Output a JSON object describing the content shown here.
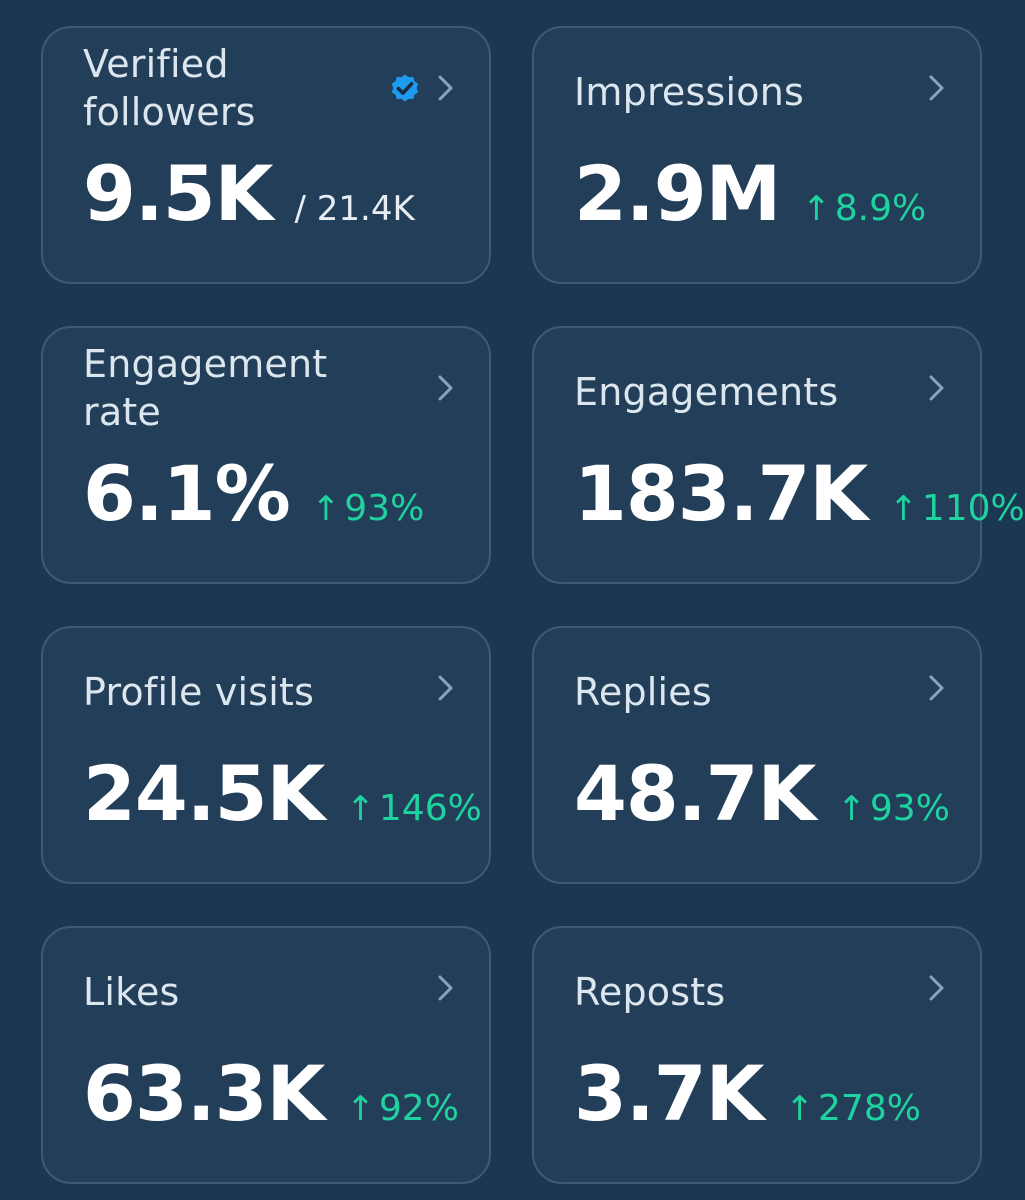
{
  "colors": {
    "background": "#1b3752",
    "card": "#233e58",
    "border": "#3e5a74",
    "positive": "#1fd3a0",
    "badge": "#1d9bf0"
  },
  "arrow_glyph": "↑",
  "cards": {
    "verified_followers": {
      "title_line1": "Verified",
      "title_line2": "followers",
      "value": "9.5K",
      "sub_value": "/ 21.4K",
      "icon": "verified-badge-icon"
    },
    "impressions": {
      "title": "Impressions",
      "value": "2.9M",
      "change": "8.9%"
    },
    "engagement_rate": {
      "title_line1": "Engagement",
      "title_line2": "rate",
      "value": "6.1%",
      "change": "93%"
    },
    "engagements": {
      "title": "Engagements",
      "value": "183.7K",
      "change": "110%"
    },
    "profile_visits": {
      "title": "Profile visits",
      "value": "24.5K",
      "change": "146%"
    },
    "replies": {
      "title": "Replies",
      "value": "48.7K",
      "change": "93%"
    },
    "likes": {
      "title": "Likes",
      "value": "63.3K",
      "change": "92%"
    },
    "reposts": {
      "title": "Reposts",
      "value": "3.7K",
      "change": "278%"
    }
  }
}
